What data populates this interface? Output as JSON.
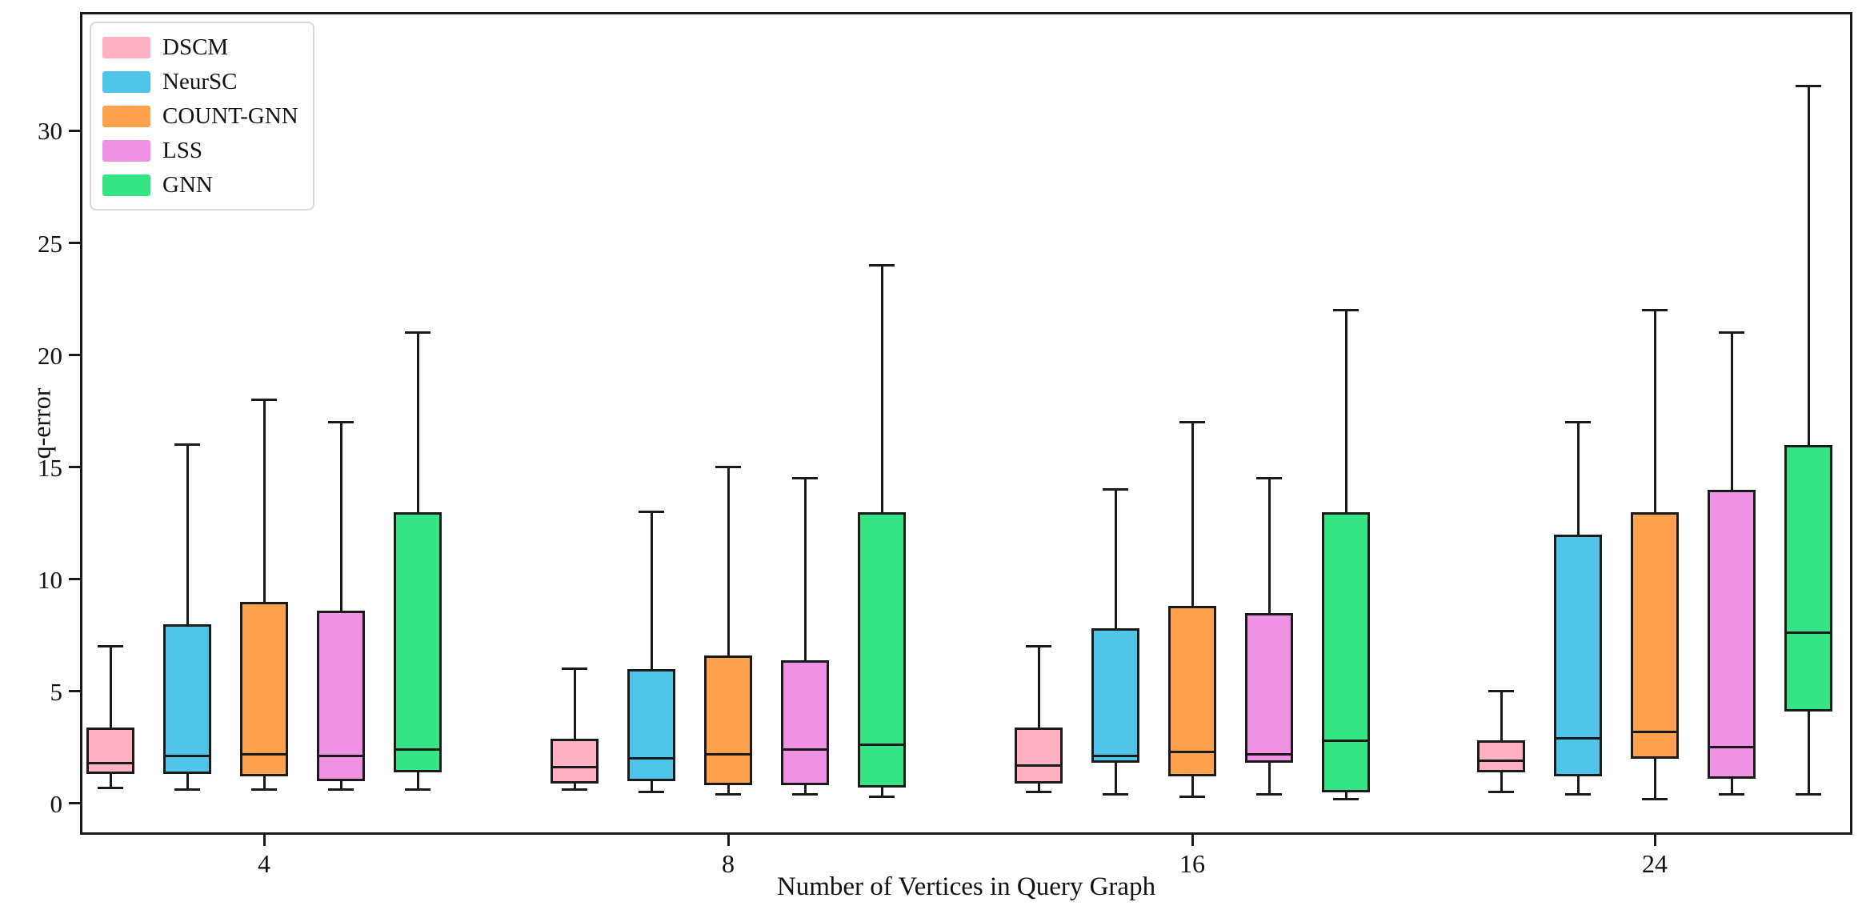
{
  "figure": {
    "background": "#ffffff",
    "axis_color": "#1a1a1a"
  },
  "chart_data": {
    "type": "boxplot",
    "title": "",
    "xlabel": "Number of Vertices in Query Graph",
    "ylabel": "q-error",
    "categories": [
      "4",
      "8",
      "16",
      "24"
    ],
    "y_ticks": [
      0,
      5,
      10,
      15,
      20,
      25,
      30
    ],
    "ylim": [
      -1.4,
      35.3
    ],
    "grid": false,
    "legend_position": "upper left",
    "box_stats_format": [
      "whisker_low",
      "q1",
      "median",
      "q3",
      "whisker_high"
    ],
    "series": [
      {
        "name": "DSCM",
        "color": "#FFB1C1",
        "values": [
          [
            0.7,
            1.3,
            1.8,
            3.4,
            7.0
          ],
          [
            0.6,
            0.9,
            1.6,
            2.9,
            6.0
          ],
          [
            0.5,
            0.9,
            1.7,
            3.4,
            7.0
          ],
          [
            0.5,
            1.4,
            1.9,
            2.8,
            5.0
          ]
        ]
      },
      {
        "name": "NeurSC",
        "color": "#4FC5EA",
        "values": [
          [
            0.6,
            1.3,
            2.1,
            8.0,
            16.0
          ],
          [
            0.5,
            1.0,
            2.0,
            6.0,
            13.0
          ],
          [
            0.4,
            1.8,
            2.1,
            7.8,
            14.0
          ],
          [
            0.4,
            1.2,
            2.9,
            12.0,
            17.0
          ]
        ]
      },
      {
        "name": "COUNT-GNN",
        "color": "#FFA24E",
        "values": [
          [
            0.6,
            1.2,
            2.2,
            9.0,
            18.0
          ],
          [
            0.4,
            0.8,
            2.2,
            6.6,
            15.0
          ],
          [
            0.3,
            1.2,
            2.3,
            8.8,
            17.0
          ],
          [
            0.2,
            2.0,
            3.2,
            13.0,
            22.0
          ]
        ]
      },
      {
        "name": "LSS",
        "color": "#EF92E4",
        "values": [
          [
            0.6,
            1.0,
            2.1,
            8.6,
            17.0
          ],
          [
            0.4,
            0.8,
            2.4,
            6.4,
            14.5
          ],
          [
            0.4,
            1.8,
            2.2,
            8.5,
            14.5
          ],
          [
            0.4,
            1.1,
            2.5,
            14.0,
            21.0
          ]
        ]
      },
      {
        "name": "GNN",
        "color": "#35E583",
        "values": [
          [
            0.6,
            1.4,
            2.4,
            13.0,
            21.0
          ],
          [
            0.3,
            0.7,
            2.6,
            13.0,
            24.0
          ],
          [
            0.2,
            0.5,
            2.8,
            13.0,
            22.0
          ],
          [
            0.4,
            4.1,
            7.6,
            16.0,
            32.0
          ]
        ]
      }
    ]
  }
}
